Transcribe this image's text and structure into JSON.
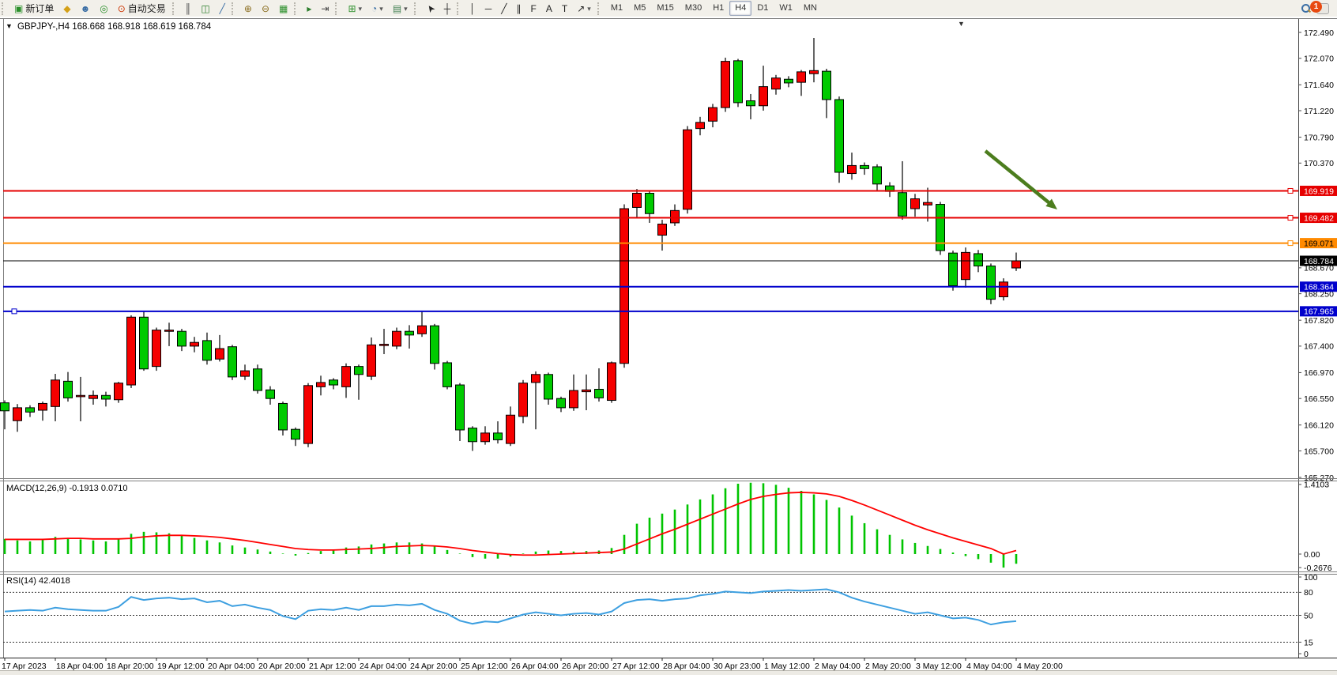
{
  "toolbar": {
    "new_order_label": "新订单",
    "auto_trading_label": "自动交易",
    "timeframes": [
      "M1",
      "M5",
      "M15",
      "M30",
      "H1",
      "H4",
      "D1",
      "W1",
      "MN"
    ],
    "active_timeframe": "H4",
    "notification_badge": "1"
  },
  "icons": {
    "new-order": "▣",
    "charts-stack": "◆",
    "profile": "☻",
    "signal": "◎",
    "auto-trading": "⊙",
    "bars-chart": "║",
    "candle-chart": "◫",
    "line-chart": "╱",
    "zoom-in": "⊕",
    "zoom-out": "⊖",
    "tile-windows": "▦",
    "auto-scroll": "▸",
    "chart-shift": "⇥",
    "indicators": "⊞",
    "periods": "◔",
    "templates": "▤",
    "cursor": "➤",
    "crosshair": "┼",
    "vline": "│",
    "hline": "─",
    "trendline": "╱",
    "channel": "∥",
    "fibo": "F",
    "text": "A",
    "text-label": "T",
    "shapes": "↗",
    "dropdown": "▾",
    "chart-menu": "▼",
    "shift-marker": "▼"
  },
  "chart": {
    "title_line": "GBPJPY-,H4  168.668 168.918 168.619 168.784",
    "symbol": "GBPJPY-",
    "timeframe": "H4",
    "open": "168.668",
    "high": "168.918",
    "low": "168.619",
    "close": "168.784"
  },
  "chart_data": {
    "type": "candlestick",
    "title": "GBPJPY-,H4",
    "grid": false,
    "price_range": [
      165.27,
      172.49
    ],
    "bull_color": "#f50000",
    "bear_color": "#00ca00",
    "wick_color": "#000000",
    "axis_ticks": [
      "172.490",
      "172.070",
      "171.640",
      "171.220",
      "170.790",
      "170.370",
      "168.670",
      "168.250",
      "167.820",
      "167.400",
      "166.970",
      "166.550",
      "166.120",
      "165.700",
      "165.270"
    ],
    "time_labels": [
      "17 Apr 2023",
      "18 Apr 04:00",
      "18 Apr 20:00",
      "19 Apr 12:00",
      "20 Apr 04:00",
      "20 Apr 20:00",
      "21 Apr 12:00",
      "24 Apr 04:00",
      "24 Apr 20:00",
      "25 Apr 12:00",
      "26 Apr 04:00",
      "26 Apr 20:00",
      "27 Apr 12:00",
      "28 Apr 04:00",
      "30 Apr 23:00",
      "1 May 12:00",
      "2 May 04:00",
      "2 May 20:00",
      "3 May 12:00",
      "4 May 04:00",
      "4 May 20:00"
    ],
    "levels": [
      {
        "price": 169.919,
        "label": "169.919",
        "color": "#e60000",
        "text_color": "#ffffff",
        "width": 2,
        "handle": "right"
      },
      {
        "price": 169.482,
        "label": "169.482",
        "color": "#e60000",
        "text_color": "#ffffff",
        "width": 2,
        "handle": "right"
      },
      {
        "price": 169.071,
        "label": "169.071",
        "color": "#ff8a00",
        "text_color": "#000000",
        "width": 2,
        "handle": "right"
      },
      {
        "price": 168.784,
        "label": "168.784",
        "color": "#000000",
        "text_color": "#ffffff",
        "width": 1,
        "handle": "none"
      },
      {
        "price": 168.364,
        "label": "168.364",
        "color": "#0000cc",
        "text_color": "#ffffff",
        "width": 2,
        "handle": "none"
      },
      {
        "price": 167.965,
        "label": "167.965",
        "color": "#0000cc",
        "text_color": "#ffffff",
        "width": 2,
        "handle": "left"
      }
    ],
    "candles": [
      [
        166.48,
        166.52,
        166.05,
        166.35
      ],
      [
        166.19,
        166.46,
        166.01,
        166.4
      ],
      [
        166.4,
        166.44,
        166.25,
        166.33
      ],
      [
        166.36,
        166.5,
        166.19,
        166.47
      ],
      [
        166.42,
        166.95,
        166.18,
        166.85
      ],
      [
        166.83,
        166.98,
        166.5,
        166.56
      ],
      [
        166.58,
        166.9,
        166.18,
        166.6
      ],
      [
        166.55,
        166.68,
        166.45,
        166.6
      ],
      [
        166.6,
        166.66,
        166.42,
        166.54
      ],
      [
        166.53,
        166.82,
        166.48,
        166.8
      ],
      [
        166.77,
        167.9,
        166.72,
        167.87
      ],
      [
        167.87,
        167.96,
        167.0,
        167.03
      ],
      [
        167.07,
        167.7,
        167.0,
        167.66
      ],
      [
        167.65,
        167.78,
        167.4,
        167.66
      ],
      [
        167.64,
        167.68,
        167.32,
        167.4
      ],
      [
        167.4,
        167.55,
        167.3,
        167.46
      ],
      [
        167.49,
        167.62,
        167.1,
        167.17
      ],
      [
        167.19,
        167.58,
        167.15,
        167.36
      ],
      [
        167.39,
        167.42,
        166.85,
        166.9
      ],
      [
        166.91,
        167.1,
        166.85,
        167.0
      ],
      [
        167.03,
        167.1,
        166.63,
        166.68
      ],
      [
        166.69,
        166.75,
        166.45,
        166.55
      ],
      [
        166.47,
        166.5,
        165.95,
        166.04
      ],
      [
        166.05,
        166.08,
        165.78,
        165.89
      ],
      [
        165.82,
        166.8,
        165.76,
        166.76
      ],
      [
        166.74,
        166.92,
        166.6,
        166.81
      ],
      [
        166.85,
        166.88,
        166.7,
        166.77
      ],
      [
        166.74,
        167.12,
        166.56,
        167.07
      ],
      [
        167.07,
        167.1,
        166.53,
        166.94
      ],
      [
        166.91,
        167.54,
        166.85,
        167.42
      ],
      [
        167.41,
        167.68,
        167.27,
        167.43
      ],
      [
        167.4,
        167.7,
        167.35,
        167.64
      ],
      [
        167.64,
        167.74,
        167.36,
        167.58
      ],
      [
        167.6,
        167.96,
        167.55,
        167.73
      ],
      [
        167.73,
        167.76,
        167.02,
        167.12
      ],
      [
        167.13,
        167.16,
        166.7,
        166.74
      ],
      [
        166.77,
        166.8,
        165.86,
        166.04
      ],
      [
        166.07,
        166.1,
        165.7,
        165.85
      ],
      [
        165.85,
        166.1,
        165.8,
        165.99
      ],
      [
        165.99,
        166.18,
        165.82,
        165.88
      ],
      [
        165.82,
        166.42,
        165.78,
        166.28
      ],
      [
        166.26,
        166.85,
        166.15,
        166.8
      ],
      [
        166.81,
        166.99,
        166.05,
        166.94
      ],
      [
        166.94,
        166.97,
        166.45,
        166.54
      ],
      [
        166.55,
        166.58,
        166.33,
        166.4
      ],
      [
        166.4,
        166.94,
        166.35,
        166.68
      ],
      [
        166.66,
        166.94,
        166.36,
        166.69
      ],
      [
        166.7,
        167.04,
        166.5,
        166.56
      ],
      [
        166.52,
        167.15,
        166.48,
        167.13
      ],
      [
        167.12,
        169.7,
        167.05,
        169.63
      ],
      [
        169.65,
        169.95,
        169.48,
        169.88
      ],
      [
        169.88,
        169.93,
        169.4,
        169.55
      ],
      [
        169.2,
        169.45,
        168.95,
        169.38
      ],
      [
        169.4,
        169.7,
        169.35,
        169.6
      ],
      [
        169.62,
        170.97,
        169.55,
        170.91
      ],
      [
        170.93,
        171.12,
        170.82,
        171.03
      ],
      [
        171.05,
        171.33,
        170.95,
        171.27
      ],
      [
        171.27,
        172.08,
        171.2,
        172.02
      ],
      [
        172.03,
        172.06,
        171.28,
        171.35
      ],
      [
        171.38,
        171.49,
        171.08,
        171.3
      ],
      [
        171.3,
        171.95,
        171.22,
        171.61
      ],
      [
        171.57,
        171.8,
        171.48,
        171.75
      ],
      [
        171.73,
        171.78,
        171.6,
        171.67
      ],
      [
        171.68,
        171.88,
        171.46,
        171.85
      ],
      [
        171.82,
        172.4,
        171.68,
        171.87
      ],
      [
        171.86,
        171.9,
        171.1,
        171.4
      ],
      [
        171.4,
        171.45,
        170.05,
        170.22
      ],
      [
        170.2,
        170.54,
        170.1,
        170.33
      ],
      [
        170.33,
        170.38,
        170.18,
        170.28
      ],
      [
        170.31,
        170.35,
        169.93,
        170.03
      ],
      [
        170.0,
        170.06,
        169.82,
        169.91
      ],
      [
        169.89,
        170.4,
        169.45,
        169.51
      ],
      [
        169.63,
        169.87,
        169.5,
        169.79
      ],
      [
        169.69,
        169.97,
        169.42,
        169.73
      ],
      [
        169.7,
        169.74,
        168.88,
        168.95
      ],
      [
        168.91,
        168.95,
        168.3,
        168.38
      ],
      [
        168.48,
        169.0,
        168.35,
        168.92
      ],
      [
        168.9,
        168.96,
        168.6,
        168.7
      ],
      [
        168.7,
        168.74,
        168.08,
        168.16
      ],
      [
        168.2,
        168.5,
        168.14,
        168.44
      ],
      [
        168.668,
        168.918,
        168.619,
        168.784
      ]
    ],
    "macd": {
      "label": "MACD(12,26,9) -0.1913 0.0710",
      "histogram_color": "#00c400",
      "signal_color": "#ff0000",
      "scale_labels": [
        "1.4103",
        "0.00",
        "-0.2676"
      ],
      "histogram": [
        0.3,
        0.27,
        0.25,
        0.29,
        0.34,
        0.32,
        0.29,
        0.27,
        0.25,
        0.29,
        0.4,
        0.44,
        0.43,
        0.41,
        0.37,
        0.32,
        0.27,
        0.23,
        0.17,
        0.13,
        0.09,
        0.05,
        0.01,
        -0.03,
        0.02,
        0.06,
        0.09,
        0.13,
        0.15,
        0.19,
        0.21,
        0.23,
        0.23,
        0.21,
        0.15,
        0.08,
        0.0,
        -0.06,
        -0.09,
        -0.09,
        -0.05,
        0.01,
        0.05,
        0.07,
        0.06,
        0.05,
        0.06,
        0.07,
        0.12,
        0.38,
        0.6,
        0.72,
        0.8,
        0.88,
        0.98,
        1.08,
        1.18,
        1.3,
        1.39,
        1.41,
        1.4,
        1.37,
        1.31,
        1.25,
        1.18,
        1.07,
        0.92,
        0.76,
        0.61,
        0.49,
        0.38,
        0.29,
        0.22,
        0.16,
        0.1,
        0.03,
        -0.04,
        -0.1,
        -0.17,
        -0.2676,
        -0.1913
      ],
      "signal": [
        0.29,
        0.29,
        0.29,
        0.29,
        0.3,
        0.31,
        0.31,
        0.3,
        0.3,
        0.3,
        0.31,
        0.34,
        0.36,
        0.37,
        0.37,
        0.36,
        0.35,
        0.33,
        0.3,
        0.27,
        0.23,
        0.19,
        0.15,
        0.11,
        0.09,
        0.08,
        0.08,
        0.09,
        0.1,
        0.11,
        0.13,
        0.15,
        0.16,
        0.17,
        0.16,
        0.14,
        0.11,
        0.07,
        0.04,
        0.01,
        -0.01,
        -0.02,
        -0.02,
        -0.01,
        0.0,
        0.01,
        0.02,
        0.03,
        0.04,
        0.1,
        0.2,
        0.3,
        0.4,
        0.49,
        0.59,
        0.69,
        0.79,
        0.89,
        0.99,
        1.08,
        1.14,
        1.18,
        1.21,
        1.22,
        1.21,
        1.19,
        1.14,
        1.06,
        0.97,
        0.87,
        0.77,
        0.67,
        0.57,
        0.48,
        0.4,
        0.32,
        0.25,
        0.18,
        0.11,
        0.0,
        0.071
      ]
    },
    "rsi": {
      "label": "RSI(14) 42.4018",
      "color": "#3d9fe0",
      "dashed_levels": [
        80,
        50,
        15
      ],
      "scale_labels": [
        "100",
        "80",
        "50",
        "15",
        "0"
      ],
      "values": [
        55,
        56,
        57,
        56,
        60,
        58,
        57,
        56,
        56,
        61,
        74,
        70,
        72,
        73,
        71,
        72,
        67,
        69,
        62,
        64,
        60,
        57,
        49,
        45,
        56,
        58,
        57,
        60,
        57,
        62,
        62,
        64,
        63,
        65,
        57,
        52,
        43,
        39,
        42,
        41,
        46,
        51,
        54,
        52,
        50,
        52,
        53,
        51,
        55,
        66,
        70,
        71,
        69,
        71,
        72,
        76,
        78,
        81,
        80,
        79,
        81,
        82,
        83,
        82,
        83,
        84,
        80,
        73,
        68,
        64,
        60,
        56,
        52,
        54,
        50,
        46,
        47,
        44,
        38,
        41,
        42.4
      ]
    },
    "annotation": {
      "shape": "arrow",
      "color": "#4c7d1e",
      "from": [
        1247,
        170
      ],
      "to": [
        1338,
        244
      ]
    }
  }
}
